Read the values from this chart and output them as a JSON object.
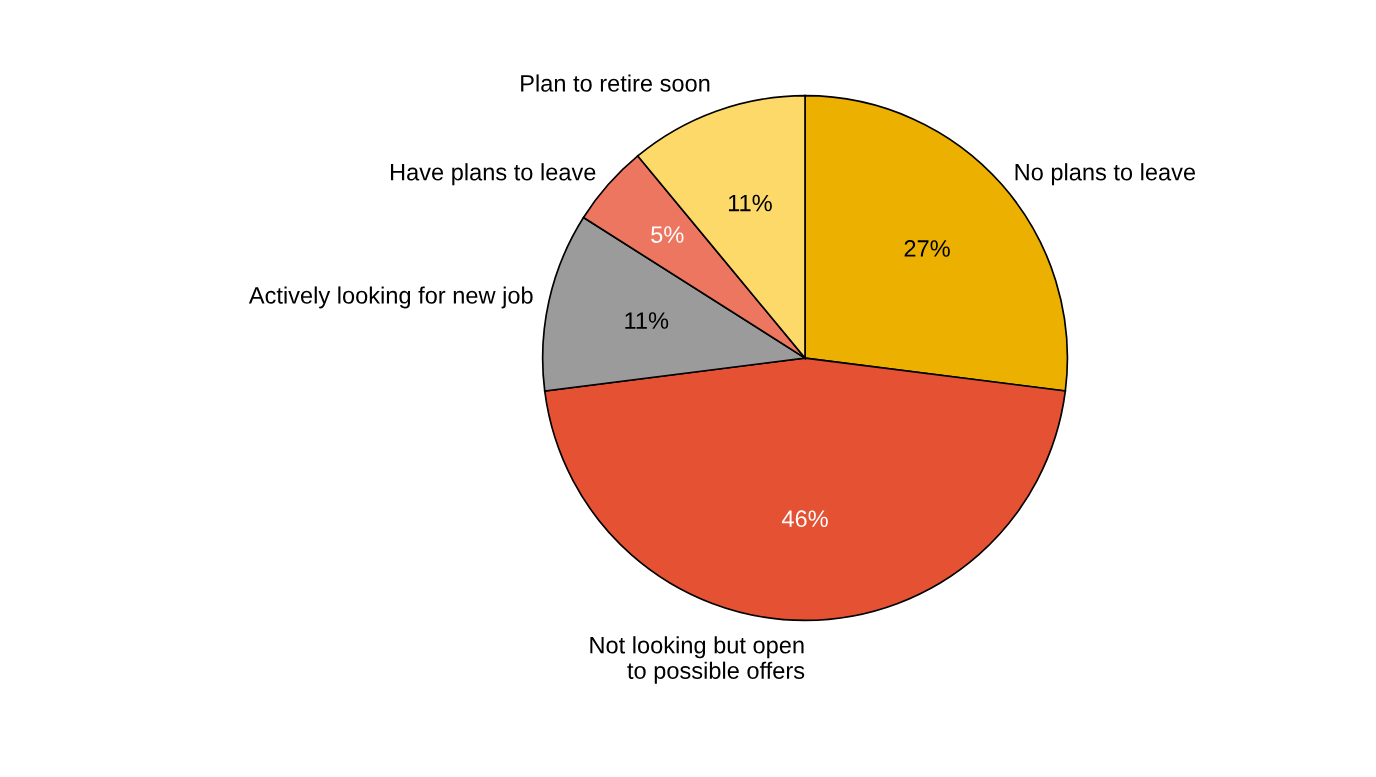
{
  "chart_data": {
    "type": "pie",
    "categories": [
      "No plans to leave",
      "Not looking but open\nto possible offers",
      "Actively looking for new job",
      "Have plans to leave",
      "Plan to retire soon"
    ],
    "values": [
      27,
      46,
      11,
      5,
      11
    ],
    "colors": [
      "#ebb000",
      "#e45133",
      "#9b9b9b",
      "#ec765f",
      "#fdd96a"
    ],
    "value_labels": [
      "27%",
      "46%",
      "11%",
      "5%",
      "11%"
    ],
    "legend": false
  }
}
